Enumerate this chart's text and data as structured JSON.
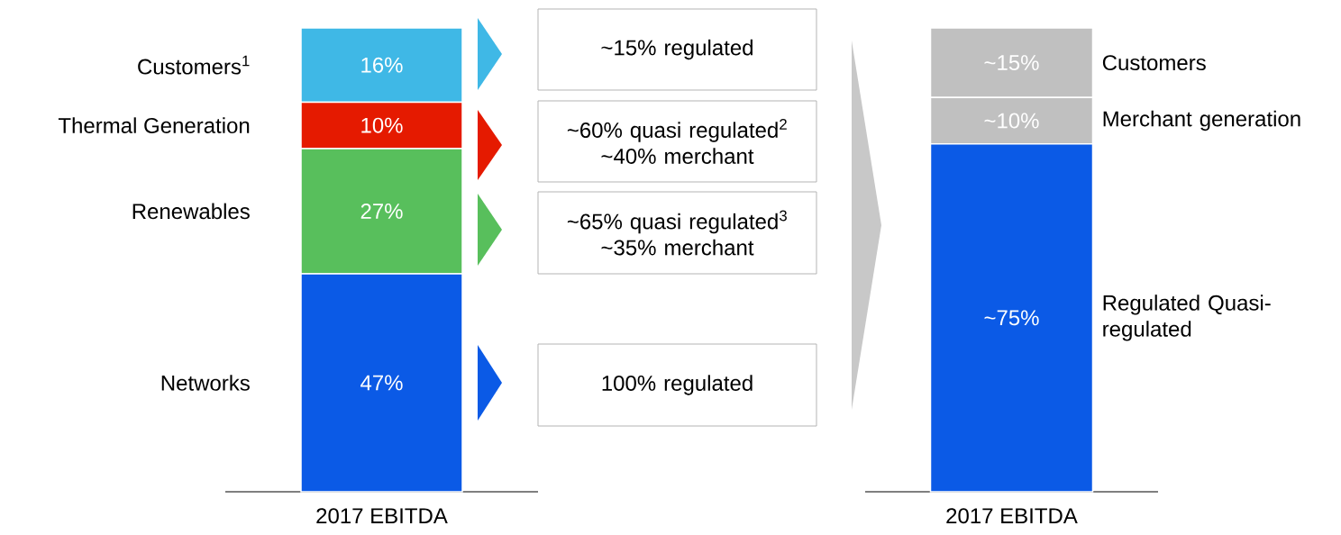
{
  "chart_data": [
    {
      "type": "bar",
      "stacked": true,
      "categories": [
        "2017 EBITDA"
      ],
      "tick_labels": "x",
      "series": [
        {
          "name": "Networks",
          "color": "#0b5ae6",
          "values": [
            47
          ],
          "value_labels": [
            "47%"
          ]
        },
        {
          "name": "Renewables",
          "color": "#58bf5c",
          "values": [
            27
          ],
          "value_labels": [
            "27%"
          ]
        },
        {
          "name": "Thermal Generation",
          "color": "#e51a00",
          "values": [
            10
          ],
          "value_labels": [
            "10%"
          ]
        },
        {
          "name": "Customers$^{1}$",
          "color": "#3fb8e6",
          "values": [
            16
          ],
          "value_labels": [
            "16%"
          ]
        }
      ],
      "annotations": [
        "~15% regulated",
        "~60% quasi regulated$^{2}$ ~40% merchant",
        "~65% quasi regulated$^{3}$ ~35% merchant",
        "100% regulated"
      ]
    },
    {
      "type": "bar",
      "stacked": true,
      "categories": [
        "2017 EBITDA"
      ],
      "tick_labels": "x",
      "series": [
        {
          "name": "Regulated Quasi-regulated",
          "color": "#0b5ae6",
          "values": [
            75
          ],
          "value_labels": [
            "~75%"
          ]
        },
        {
          "name": "Merchant generation",
          "color": "#c0c0c0",
          "values": [
            10
          ],
          "value_labels": [
            "~10%"
          ]
        },
        {
          "name": "Customers",
          "color": "#c0c0c0",
          "values": [
            15
          ],
          "value_labels": [
            "~15%"
          ]
        }
      ]
    }
  ]
}
